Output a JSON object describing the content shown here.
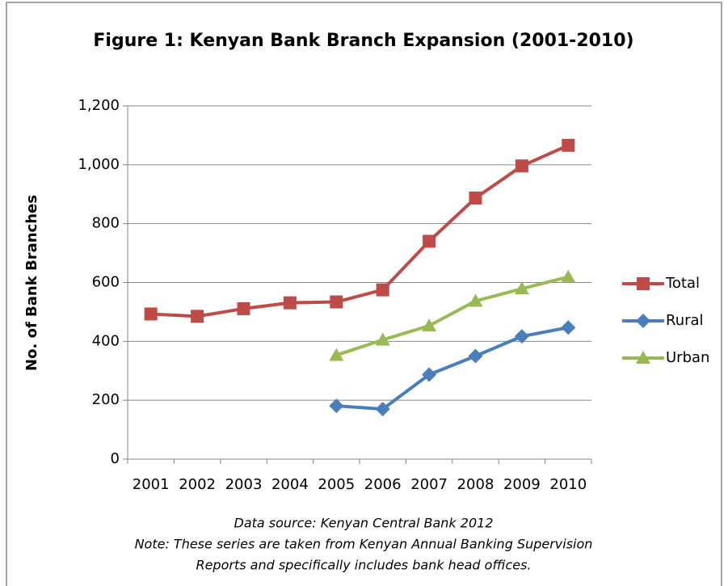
{
  "chart_data": {
    "type": "line",
    "title": "Figure 1: Kenyan Bank Branch Expansion (2001-2010)",
    "y_label": "No. of Bank Branches",
    "categories": [
      "2001",
      "2002",
      "2003",
      "2004",
      "2005",
      "2006",
      "2007",
      "2008",
      "2009",
      "2010"
    ],
    "series": [
      {
        "name": "Total",
        "color": "#be4b48",
        "marker": "square",
        "values": [
          493,
          485,
          511,
          531,
          534,
          575,
          740,
          887,
          996,
          1066
        ]
      },
      {
        "name": "Rural",
        "color": "#4a7ebb",
        "marker": "diamond",
        "values": [
          null,
          null,
          null,
          null,
          181,
          170,
          287,
          350,
          417,
          447
        ]
      },
      {
        "name": "Urban",
        "color": "#98b954",
        "marker": "triangle",
        "values": [
          null,
          null,
          null,
          null,
          353,
          405,
          453,
          537,
          579,
          619
        ]
      }
    ],
    "ylim": [
      0,
      1200
    ],
    "yticks": [
      0,
      200,
      400,
      600,
      800,
      {
        "value": 1000,
        "label": "1,000"
      },
      {
        "value": 1200,
        "label": "1,200"
      }
    ],
    "grid": true,
    "legend": "right",
    "annotations": [
      "Data source: Kenyan Central Bank 2012",
      "Note: These series are taken from Kenyan Annual Banking Supervision",
      "Reports and specifically includes bank head offices."
    ]
  }
}
